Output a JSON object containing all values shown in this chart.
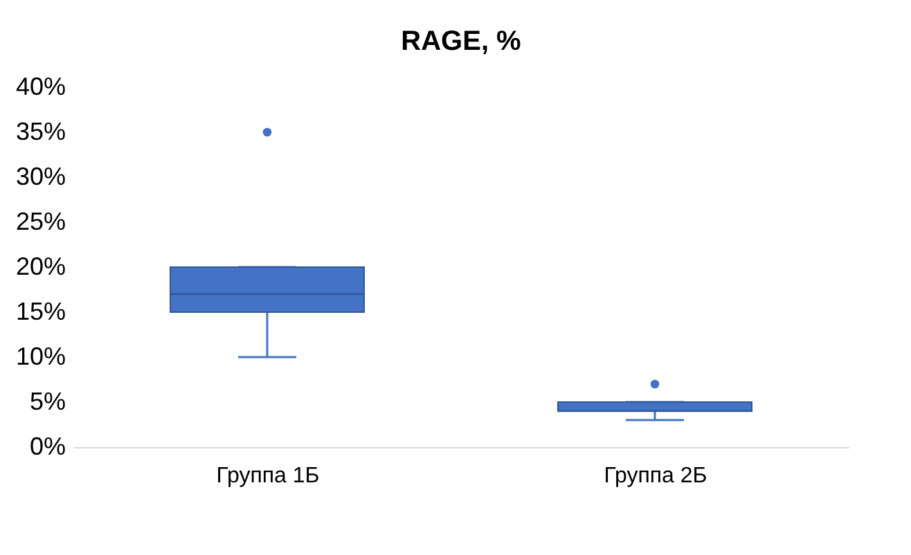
{
  "chart_data": {
    "type": "box",
    "title": "RAGE, %",
    "categories": [
      "Группа 1Б",
      "Группа 2Б"
    ],
    "series": [
      {
        "color": "#4472c4",
        "boxes": [
          {
            "low": 10,
            "q1": 15,
            "median": 17,
            "q3": 20,
            "high": 20,
            "outliers": [
              35
            ]
          },
          {
            "low": 3,
            "q1": 4,
            "median": 4,
            "q3": 5,
            "high": 5,
            "outliers": [
              7
            ]
          }
        ]
      }
    ],
    "ylim": [
      0,
      40
    ],
    "yticks": [
      {
        "value": 0,
        "label": "0%"
      },
      {
        "value": 5,
        "label": "5%"
      },
      {
        "value": 10,
        "label": "10%"
      },
      {
        "value": 15,
        "label": "15%"
      },
      {
        "value": 20,
        "label": "20%"
      },
      {
        "value": 25,
        "label": "25%"
      },
      {
        "value": 30,
        "label": "30%"
      },
      {
        "value": 35,
        "label": "35%"
      },
      {
        "value": 40,
        "label": "40%"
      }
    ],
    "grid": false
  }
}
